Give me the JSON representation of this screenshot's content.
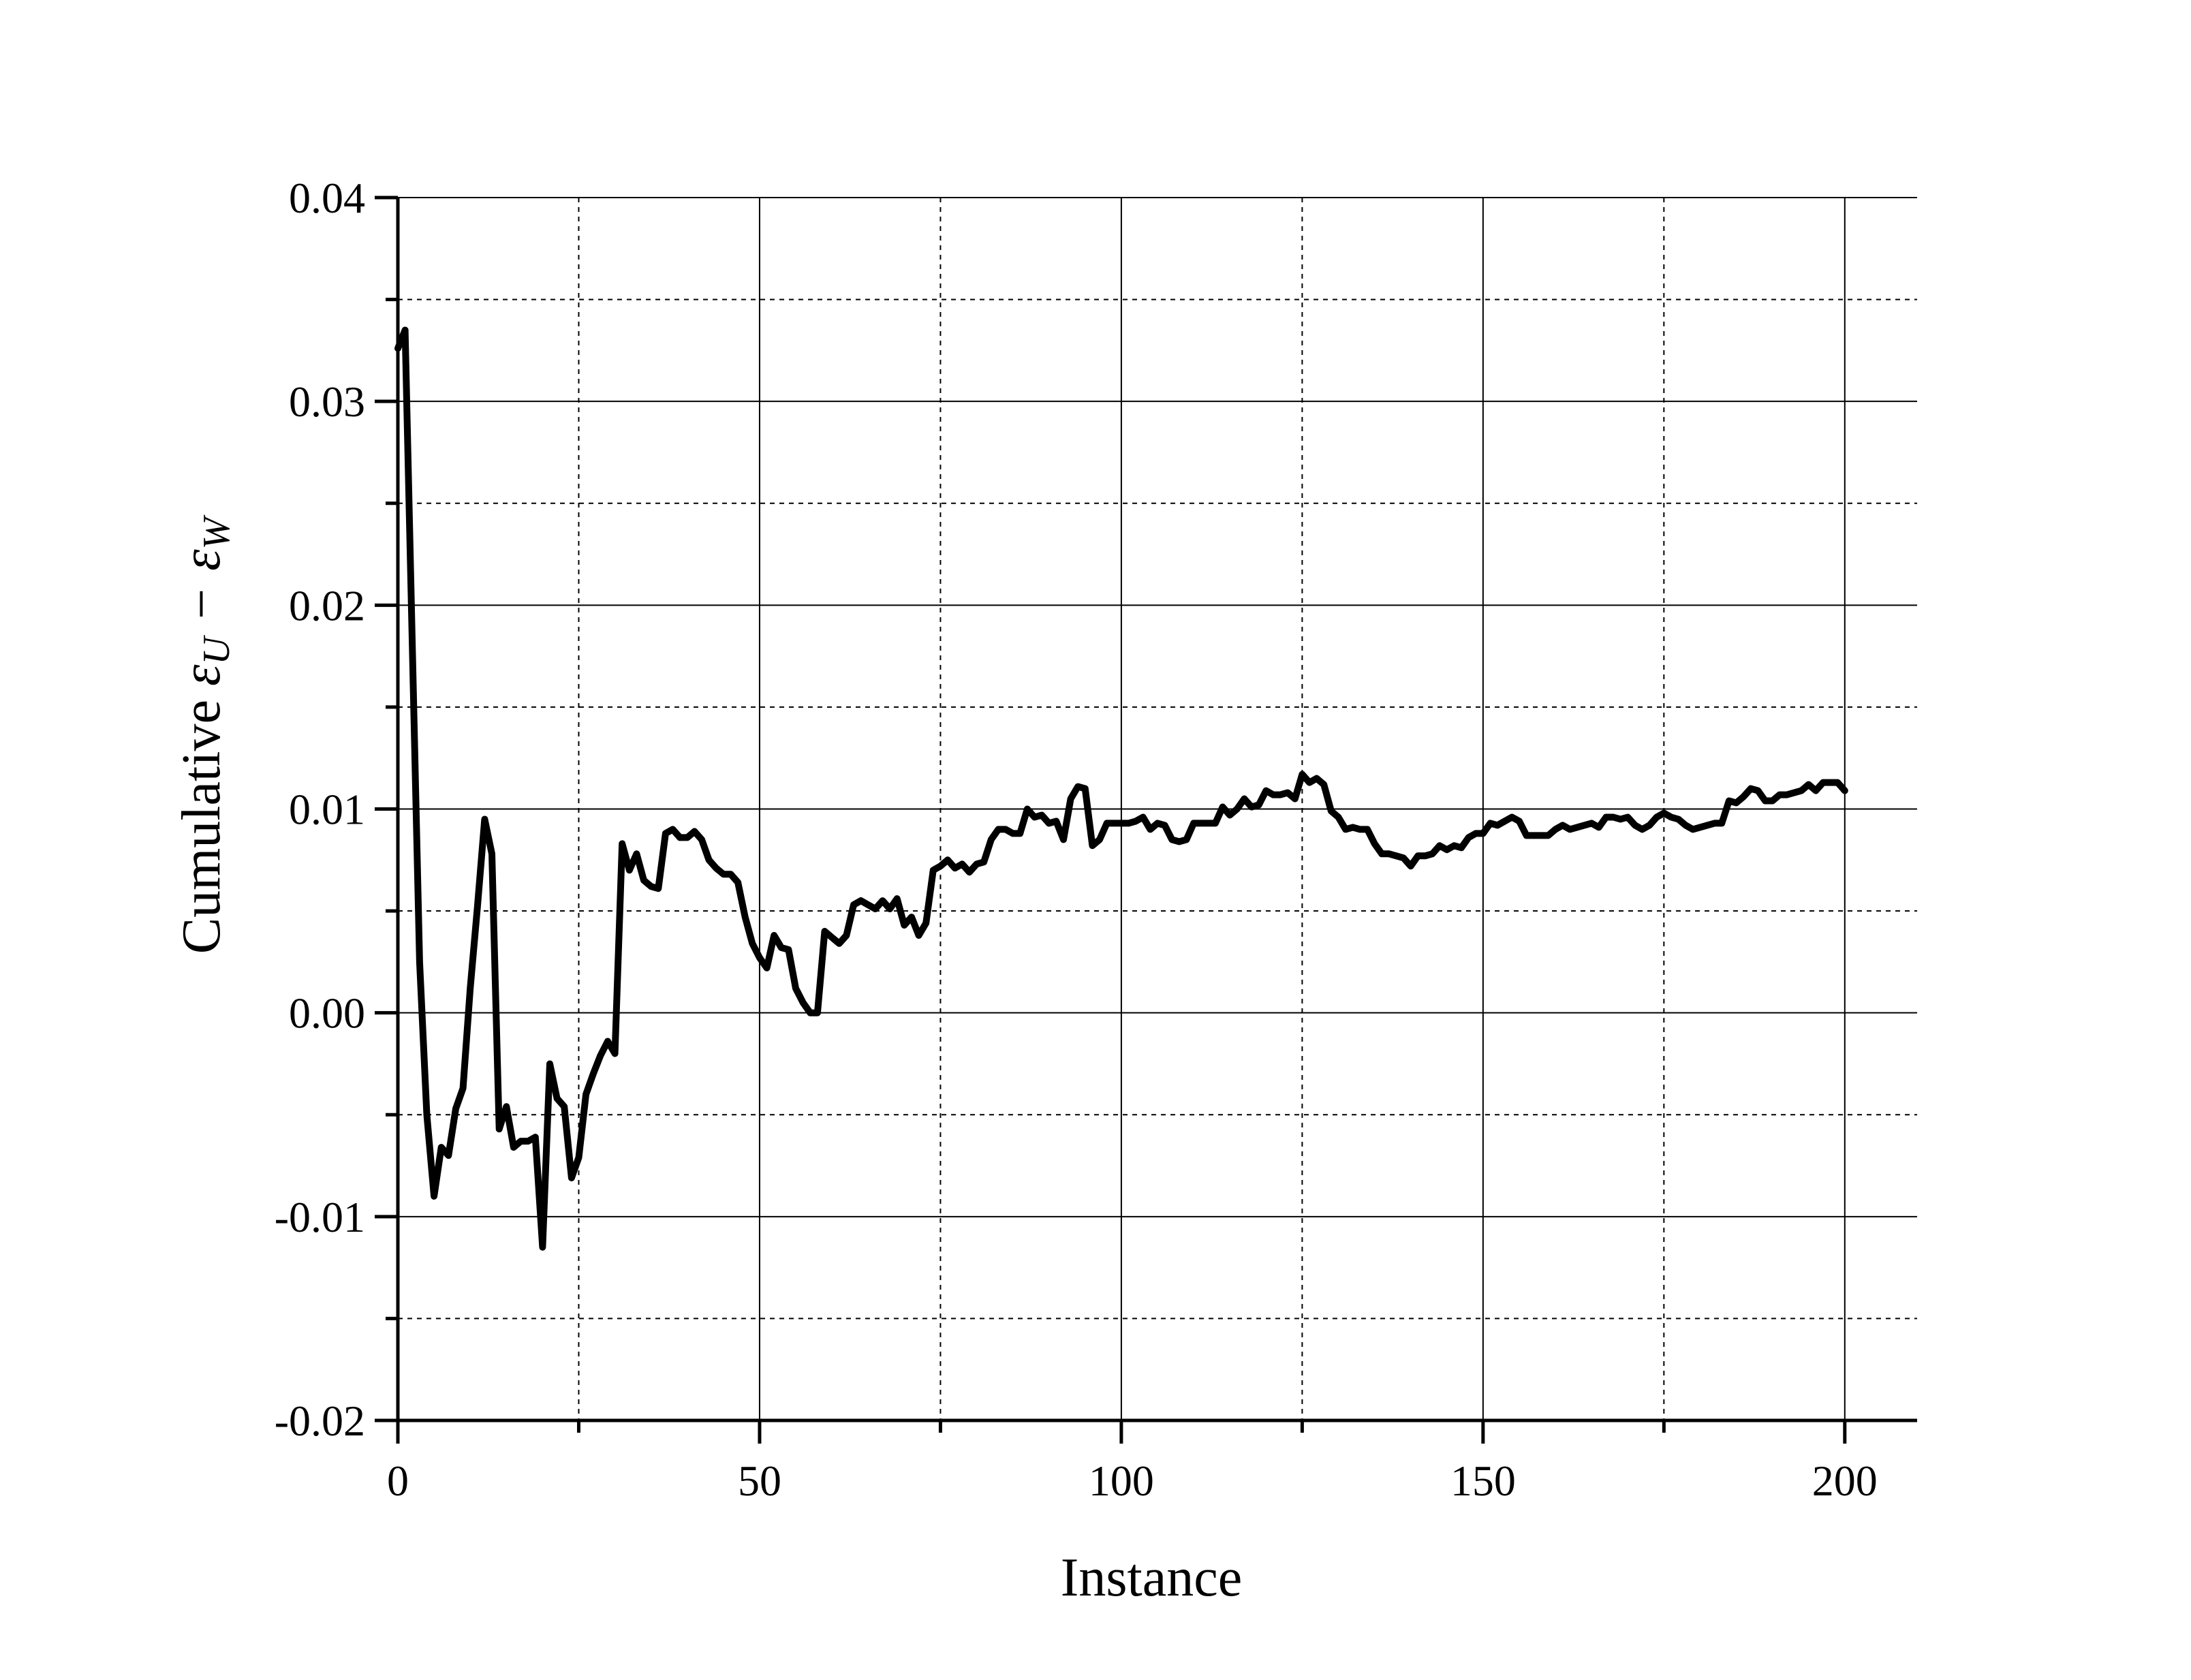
{
  "chart_data": {
    "type": "line",
    "title": "",
    "xlabel": "Instance",
    "ylabel_prefix": "Cumulative ",
    "ylabel_math": "εU − εW",
    "ylabel_parts": {
      "eps1": "ε",
      "sub1": "U",
      "minus": "−",
      "eps2": "ε",
      "sub2": "W"
    },
    "xlim": [
      0,
      210
    ],
    "ylim": [
      -0.02,
      0.04
    ],
    "xticks": [
      0,
      50,
      100,
      150,
      200
    ],
    "xtick_labels": [
      "0",
      "50",
      "100",
      "150",
      "200"
    ],
    "yticks": [
      -0.02,
      -0.01,
      0.0,
      0.01,
      0.02,
      0.03,
      0.04
    ],
    "ytick_labels": [
      "-0.02",
      "-0.01",
      "0.00",
      "0.01",
      "0.02",
      "0.03",
      "0.04"
    ],
    "x_minor_grid": [
      25,
      75,
      125,
      175
    ],
    "y_minor_grid": [
      -0.015,
      -0.005,
      0.005,
      0.015,
      0.025,
      0.035
    ],
    "grid": true,
    "line_color": "#000000",
    "series": [
      {
        "x": [
          0,
          1,
          2,
          3,
          4,
          5,
          6,
          7,
          8,
          9,
          10,
          11,
          12,
          13,
          14,
          15,
          16,
          17,
          18,
          19,
          20,
          21,
          22,
          23,
          24,
          25,
          26,
          27,
          28,
          29,
          30,
          31,
          32,
          33,
          34,
          35,
          36,
          37,
          38,
          39,
          40,
          41,
          42,
          43,
          44,
          45,
          46,
          47,
          48,
          49,
          50,
          51,
          52,
          53,
          54,
          55,
          56,
          57,
          58,
          59,
          60,
          61,
          62,
          63,
          64,
          65,
          66,
          67,
          68,
          69,
          70,
          71,
          72,
          73,
          74,
          75,
          76,
          77,
          78,
          79,
          80,
          81,
          82,
          83,
          84,
          85,
          86,
          87,
          88,
          89,
          90,
          91,
          92,
          93,
          94,
          95,
          96,
          97,
          98,
          99,
          100,
          101,
          102,
          103,
          104,
          105,
          106,
          107,
          108,
          109,
          110,
          111,
          112,
          113,
          114,
          115,
          116,
          117,
          118,
          119,
          120,
          121,
          122,
          123,
          124,
          125,
          126,
          127,
          128,
          129,
          130,
          131,
          132,
          133,
          134,
          135,
          136,
          137,
          138,
          139,
          140,
          141,
          142,
          143,
          144,
          145,
          146,
          147,
          148,
          149,
          150,
          151,
          152,
          153,
          154,
          155,
          156,
          157,
          158,
          159,
          160,
          161,
          162,
          163,
          164,
          165,
          166,
          167,
          168,
          169,
          170,
          171,
          172,
          173,
          174,
          175,
          176,
          177,
          178,
          179,
          180,
          181,
          182,
          183,
          184,
          185,
          186,
          187,
          188,
          189,
          190,
          191,
          192,
          193,
          194,
          195,
          196,
          197,
          198,
          199,
          200
        ],
        "y": [
          0.0326,
          0.0335,
          0.018,
          0.0025,
          -0.005,
          -0.009,
          -0.0066,
          -0.007,
          -0.0047,
          -0.0037,
          0.0012,
          0.0052,
          0.0095,
          0.0078,
          -0.0057,
          -0.0046,
          -0.0066,
          -0.0063,
          -0.0063,
          -0.0061,
          -0.0115,
          -0.0025,
          -0.0042,
          -0.0046,
          -0.0081,
          -0.0071,
          -0.004,
          -0.003,
          -0.0021,
          -0.0014,
          -0.002,
          0.0083,
          0.007,
          0.0078,
          0.0065,
          0.0062,
          0.0061,
          0.0088,
          0.009,
          0.0086,
          0.0086,
          0.0089,
          0.0085,
          0.0075,
          0.0071,
          0.0068,
          0.0068,
          0.0064,
          0.0047,
          0.0034,
          0.0027,
          0.0022,
          0.0038,
          0.0032,
          0.0031,
          0.0012,
          0.0005,
          0.0,
          0.0,
          0.004,
          0.0037,
          0.0034,
          0.0038,
          0.0053,
          0.0055,
          0.0053,
          0.0051,
          0.0055,
          0.0051,
          0.0056,
          0.0043,
          0.0047,
          0.0038,
          0.0044,
          0.007,
          0.0072,
          0.0075,
          0.0071,
          0.0073,
          0.0069,
          0.0073,
          0.0074,
          0.0085,
          0.009,
          0.009,
          0.0088,
          0.0088,
          0.01,
          0.0096,
          0.0097,
          0.0093,
          0.0094,
          0.0085,
          0.0105,
          0.0111,
          0.011,
          0.0082,
          0.0085,
          0.0093,
          0.0093,
          0.0093,
          0.0093,
          0.0094,
          0.0096,
          0.009,
          0.0093,
          0.0092,
          0.0085,
          0.0084,
          0.0085,
          0.0093,
          0.0093,
          0.0093,
          0.0093,
          0.0101,
          0.0097,
          0.01,
          0.0105,
          0.0101,
          0.0102,
          0.0109,
          0.0107,
          0.0107,
          0.0108,
          0.0105,
          0.0117,
          0.0113,
          0.0115,
          0.0112,
          0.0099,
          0.0096,
          0.009,
          0.0091,
          0.009,
          0.009,
          0.0083,
          0.0078,
          0.0078,
          0.0077,
          0.0076,
          0.0072,
          0.0077,
          0.0077,
          0.0078,
          0.0082,
          0.008,
          0.0082,
          0.0081,
          0.0086,
          0.0088,
          0.0088,
          0.0093,
          0.0092,
          0.0094,
          0.0096,
          0.0094,
          0.0087,
          0.0087,
          0.0087,
          0.0087,
          0.009,
          0.0092,
          0.009,
          0.0091,
          0.0092,
          0.0093,
          0.0091,
          0.0096,
          0.0096,
          0.0095,
          0.0096,
          0.0092,
          0.009,
          0.0092,
          0.0096,
          0.0098,
          0.0096,
          0.0095,
          0.0092,
          0.009,
          0.0091,
          0.0092,
          0.0093,
          0.0093,
          0.0104,
          0.0103,
          0.0106,
          0.011,
          0.0109,
          0.0104,
          0.0104,
          0.0107,
          0.0107,
          0.0108,
          0.0109,
          0.0112,
          0.0109,
          0.0113,
          0.0113,
          0.0113,
          0.0109
        ]
      }
    ]
  }
}
